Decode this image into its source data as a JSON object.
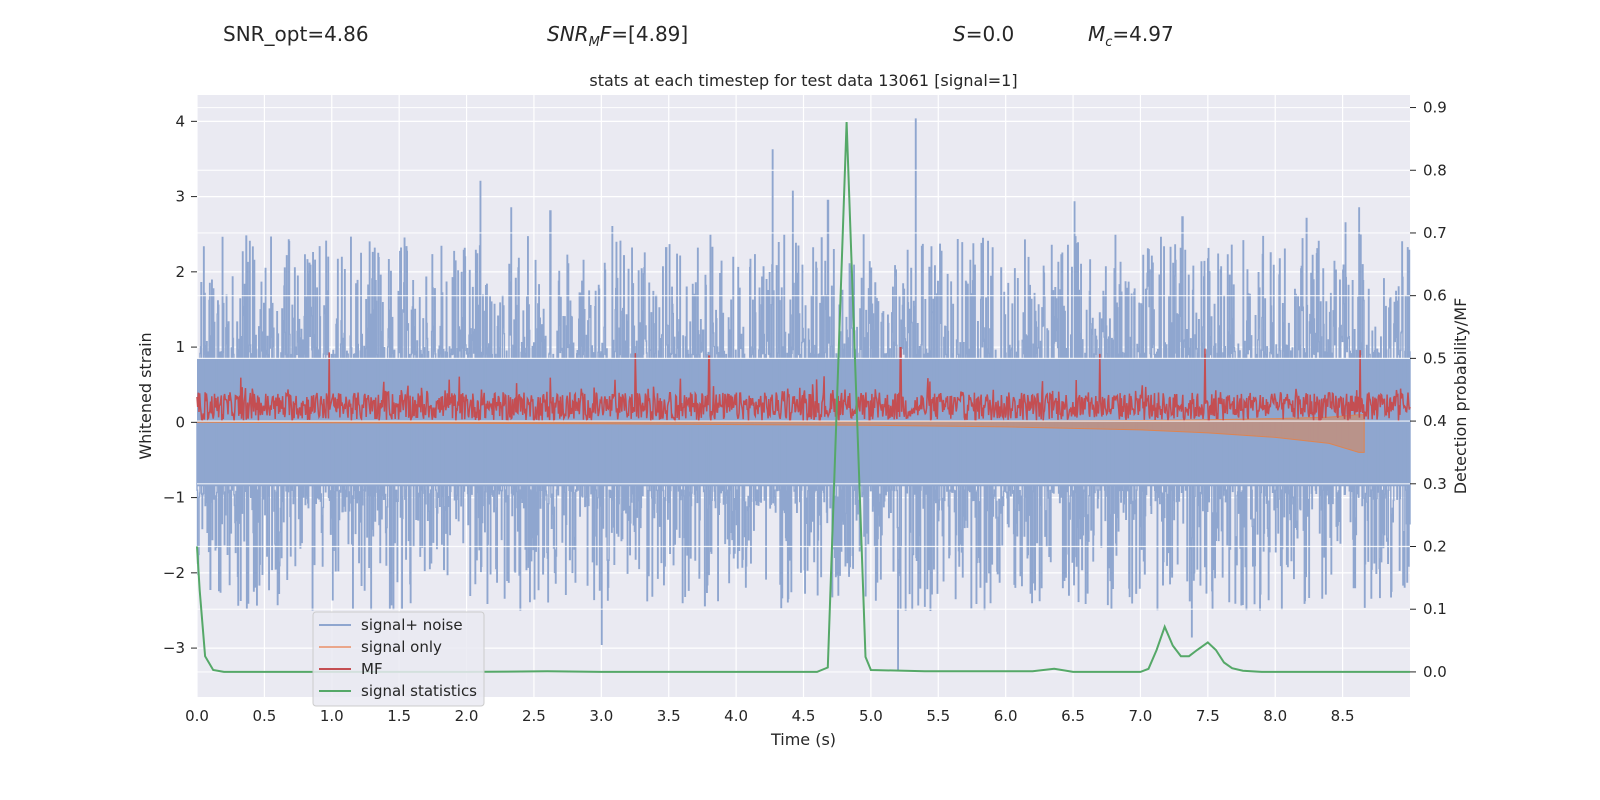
{
  "header": {
    "snr_opt": "SNR_opt=4.86",
    "snr_mf_sym": "SNR",
    "snr_mf_sub": "M",
    "snr_mf_sym2": "F",
    "snr_mf_value": "=[4.89]",
    "s_sym": "S",
    "s_value": "=0.0",
    "mc_sym": "M",
    "mc_sub": "c",
    "mc_value": "=4.97"
  },
  "chart_data": {
    "type": "line",
    "title": "stats at each timestep for test data 13061 [signal=1]",
    "xlabel": "Time (s)",
    "ylabel": "Whitened strain",
    "ylabel_right": "Detection probability/MF",
    "xlim": [
      0.0,
      9.0
    ],
    "ylim": [
      -3.65,
      4.35
    ],
    "ylim_right": [
      -0.04,
      0.92
    ],
    "x_ticks": [
      "0.0",
      "0.5",
      "1.0",
      "1.5",
      "2.0",
      "2.5",
      "3.0",
      "3.5",
      "4.0",
      "4.5",
      "5.0",
      "5.5",
      "6.0",
      "6.5",
      "7.0",
      "7.5",
      "8.0",
      "8.5"
    ],
    "y_ticks": [
      "−3",
      "−2",
      "−1",
      "0",
      "1",
      "2",
      "3",
      "4"
    ],
    "y_ticks_right": [
      "0.0",
      "0.1",
      "0.2",
      "0.3",
      "0.4",
      "0.5",
      "0.6",
      "0.7",
      "0.8",
      "0.9"
    ],
    "grid": true,
    "legend_position": "lower-left",
    "colors": {
      "noise": "#8fa6cf",
      "signal": "#dd8452",
      "mf": "#c44e52",
      "stat": "#55a868",
      "background": "#eaeaf2",
      "grid": "#ffffff"
    },
    "series": [
      {
        "name": "signal+ noise",
        "axis": "left",
        "note_range": [
          -2.5,
          2.5
        ],
        "peaks": [
          [
            0.05,
            2.33
          ],
          [
            1.07,
            1.35
          ],
          [
            1.82,
            1.72
          ],
          [
            2.1,
            3.2
          ],
          [
            2.33,
            2.85
          ],
          [
            2.62,
            2.81
          ],
          [
            3.0,
            -2.95
          ],
          [
            3.08,
            2.6
          ],
          [
            3.48,
            2.32
          ],
          [
            4.27,
            3.62
          ],
          [
            4.42,
            3.07
          ],
          [
            4.68,
            2.95
          ],
          [
            5.33,
            4.03
          ],
          [
            5.2,
            -3.3
          ],
          [
            6.51,
            2.93
          ],
          [
            7.31,
            2.73
          ],
          [
            7.38,
            -2.85
          ],
          [
            8.23,
            2.71
          ],
          [
            8.52,
            2.65
          ],
          [
            8.62,
            2.85
          ],
          [
            8.98,
            2.32
          ]
        ]
      },
      {
        "name": "signal only",
        "axis": "left",
        "envelope": [
          [
            0.0,
            0.0
          ],
          [
            3.0,
            0.02
          ],
          [
            5.0,
            0.04
          ],
          [
            6.0,
            0.06
          ],
          [
            7.0,
            0.1
          ],
          [
            7.5,
            0.14
          ],
          [
            8.0,
            0.2
          ],
          [
            8.4,
            0.28
          ],
          [
            8.62,
            0.4
          ],
          [
            8.66,
            0.4
          ]
        ]
      },
      {
        "name": "MF",
        "axis": "left",
        "note_range": [
          0.0,
          0.85
        ],
        "peaks": [
          [
            0.98,
            0.93
          ],
          [
            3.25,
            0.92
          ],
          [
            3.8,
            0.88
          ],
          [
            5.22,
            0.99
          ],
          [
            6.7,
            0.91
          ],
          [
            7.48,
            0.98
          ],
          [
            8.63,
            0.96
          ]
        ]
      },
      {
        "name": "signal statistics",
        "axis": "right",
        "x": [
          0.0,
          0.02,
          0.06,
          0.12,
          0.2,
          0.4,
          1.0,
          2.0,
          2.6,
          3.0,
          4.0,
          4.6,
          4.68,
          4.82,
          4.96,
          5.0,
          5.4,
          6.2,
          6.36,
          6.5,
          7.0,
          7.06,
          7.12,
          7.18,
          7.24,
          7.3,
          7.36,
          7.42,
          7.5,
          7.56,
          7.62,
          7.68,
          7.76,
          7.9,
          8.0,
          9.0
        ],
        "y": [
          0.2,
          0.13,
          0.025,
          0.003,
          0.0,
          0.0,
          0.0,
          0.0,
          0.001,
          0.0,
          0.0,
          0.0,
          0.007,
          0.877,
          0.024,
          0.003,
          0.001,
          0.001,
          0.005,
          0.0,
          0.0,
          0.005,
          0.035,
          0.072,
          0.042,
          0.025,
          0.025,
          0.035,
          0.047,
          0.035,
          0.015,
          0.006,
          0.002,
          0.0,
          0.0,
          0.0
        ]
      }
    ]
  }
}
